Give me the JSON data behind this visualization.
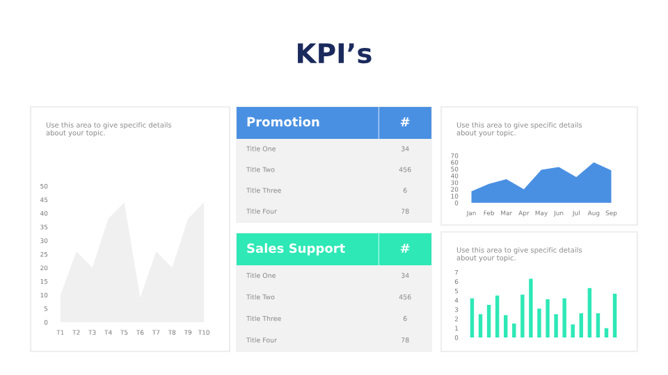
{
  "chart_data": [
    {
      "type": "other",
      "title": "KPI’s"
    },
    {
      "type": "area",
      "subtitle": "Use this area to give specific details about your topic.",
      "categories": [
        "T1",
        "T2",
        "T3",
        "T4",
        "T5",
        "T6",
        "T7",
        "T8",
        "T9",
        "T10"
      ],
      "values": [
        10,
        26,
        20,
        38,
        44,
        9,
        26,
        20,
        38,
        44
      ],
      "color": "#f0f0f0",
      "ylim": [
        0,
        50
      ],
      "yticks": [
        0,
        5,
        10,
        15,
        20,
        25,
        30,
        35,
        40,
        45,
        50
      ],
      "grid": false
    },
    {
      "type": "other",
      "title": "Promotion",
      "annotations": [
        "#"
      ],
      "categories": [
        "Title One",
        "Title Two",
        "Title Three",
        "Title Four"
      ],
      "values": [
        34,
        456,
        6,
        78
      ],
      "data_labels": true
    },
    {
      "type": "other",
      "title": "Sales Support",
      "annotations": [
        "#"
      ],
      "categories": [
        "Title One",
        "Title Two",
        "Title Three",
        "Title Four"
      ],
      "values": [
        34,
        456,
        6,
        78
      ],
      "data_labels": true
    },
    {
      "type": "area",
      "subtitle": "Use this area to give specific details about your topic.",
      "categories": [
        "Jan",
        "Feb",
        "Mar",
        "Apr",
        "May",
        "Jun",
        "Jul",
        "Aug",
        "Sep"
      ],
      "values": [
        17,
        28,
        35,
        20,
        49,
        53,
        38,
        60,
        48
      ],
      "color": "#4a90e2",
      "ylim": [
        0,
        70
      ],
      "yticks": [
        0,
        10,
        20,
        30,
        40,
        50,
        60,
        70
      ],
      "grid": false
    },
    {
      "type": "bar",
      "subtitle": "Use this area to give specific details about your topic.",
      "categories": [
        null,
        null,
        null,
        null,
        null,
        null,
        null,
        null,
        null,
        null,
        null,
        null,
        null,
        null,
        null,
        null,
        null,
        null
      ],
      "values": [
        4.2,
        2.5,
        3.5,
        4.5,
        2.4,
        1.5,
        4.6,
        6.3,
        3.1,
        4.1,
        2.5,
        4.2,
        1.4,
        2.6,
        5.3,
        2.6,
        1.0,
        4.7
      ],
      "color": "#2ee8b6",
      "ylim": [
        0,
        7
      ],
      "yticks": [
        0,
        1,
        2,
        3,
        4,
        5,
        6,
        7
      ],
      "grid": false,
      "tick_labels": "y"
    }
  ]
}
